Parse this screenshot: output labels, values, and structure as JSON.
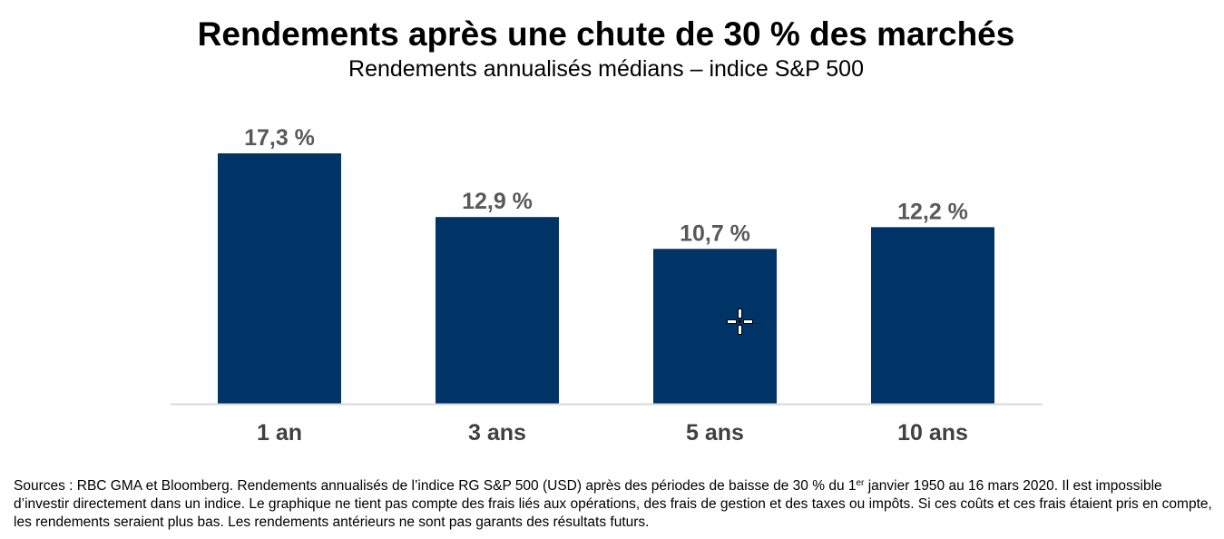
{
  "header": {
    "title": "Rendements après une chute de 30 % des marchés",
    "subtitle": "Rendements annualisés médians – indice S&P 500"
  },
  "colors": {
    "bar": "#003366",
    "baseline": "#d9d9d9",
    "value_label": "#595959",
    "category_label": "#404040"
  },
  "chart_data": {
    "type": "bar",
    "title": "Rendements après une chute de 30 % des marchés",
    "subtitle": "Rendements annualisés médians – indice S&P 500",
    "categories": [
      "1 an",
      "3 ans",
      "5 ans",
      "10 ans"
    ],
    "values": [
      17.3,
      12.9,
      10.7,
      12.2
    ],
    "value_labels": [
      "17,3 %",
      "12,9 %",
      "10,7 %",
      "12,2 %"
    ],
    "unit": "%",
    "ylim": [
      0,
      17.3
    ],
    "grid": false,
    "legend": false
  },
  "footnote": {
    "part1": "Sources : RBC GMA et Bloomberg. Rendements annualisés de l’indice RG S&P 500 (USD) après des périodes de baisse de 30 % du 1",
    "sup": "er",
    "part2": " janvier 1950 au 16 mars 2020. Il est impossible d’investir directement dans un indice. Le graphique ne tient pas compte des frais liés aux opérations, des frais de gestion et des taxes ou impôts. Si ces coûts et ces frais étaient pris en compte, les rendements seraient plus bas. Les rendements antérieurs ne sont pas garants des résultats futurs."
  }
}
